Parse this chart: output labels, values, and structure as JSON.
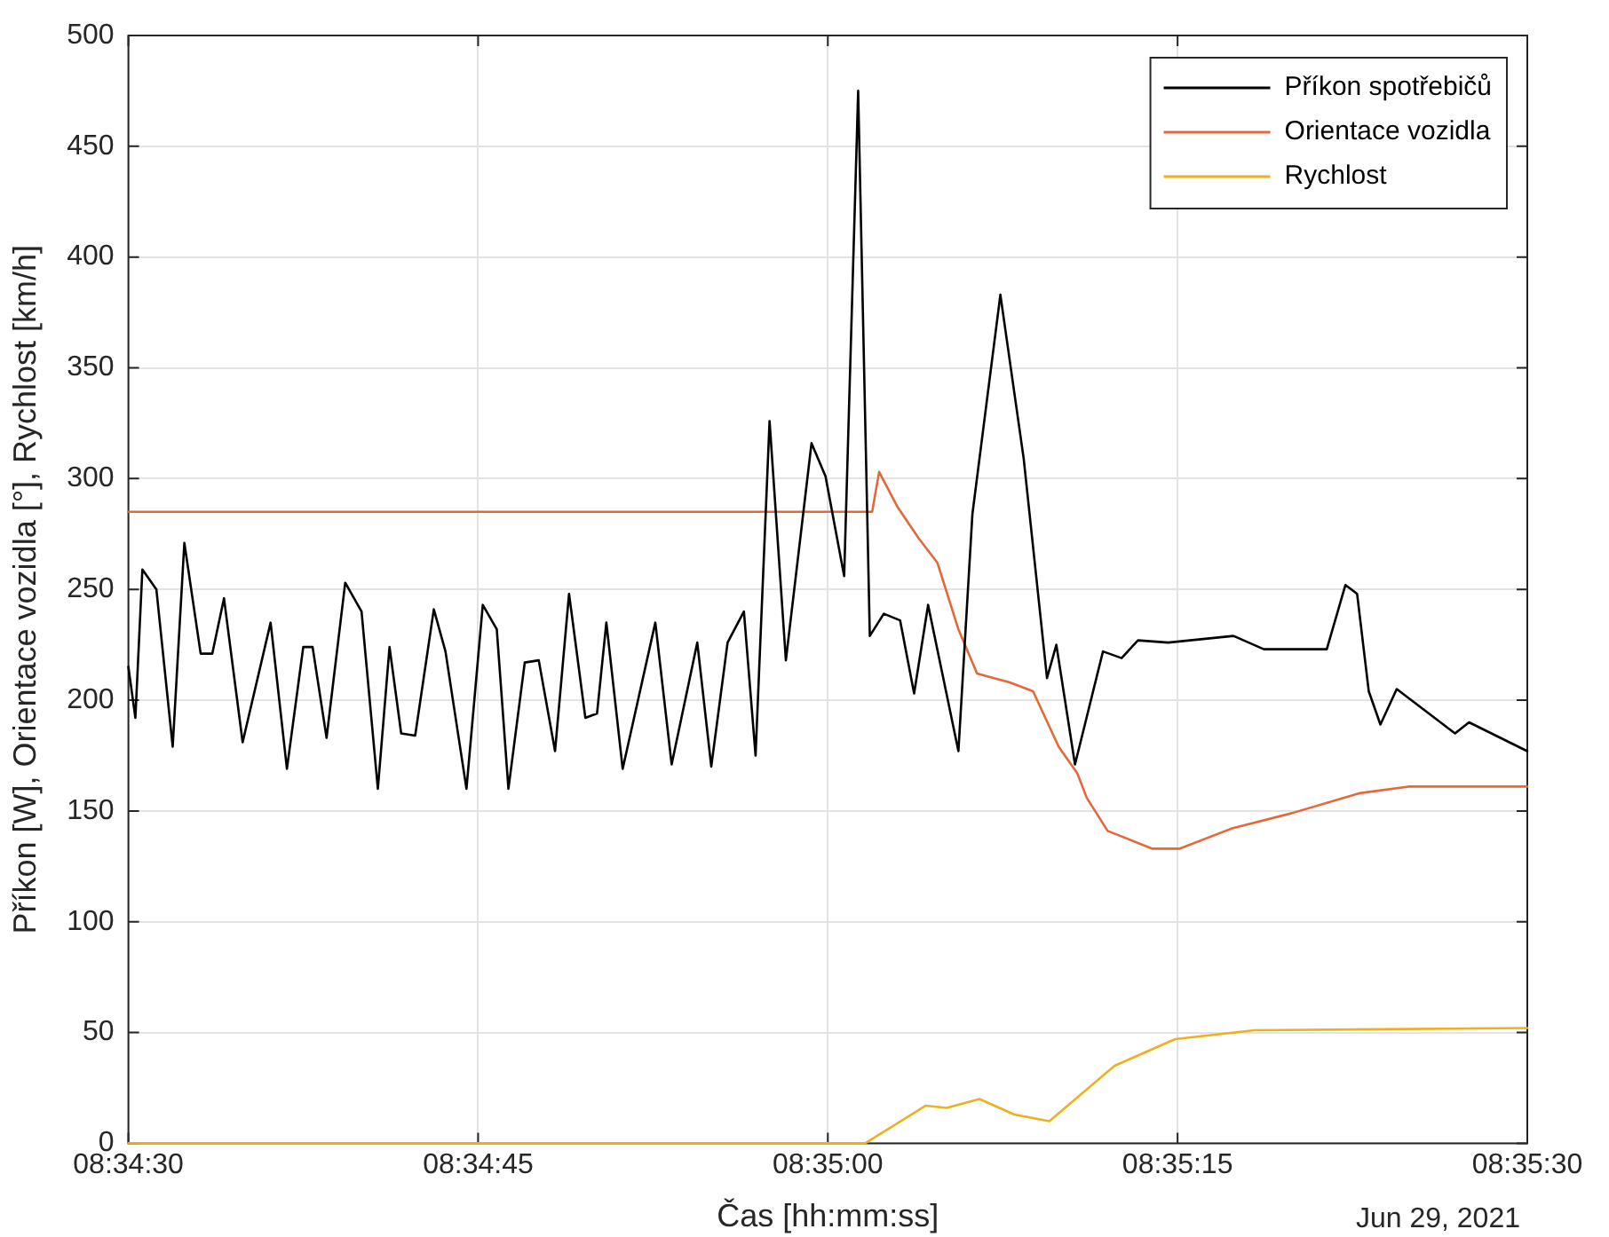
{
  "chart_data": {
    "type": "line",
    "xlabel": "Čas [hh:mm:ss]",
    "ylabel": "Příkon [W], Orientace vozidla [°], Rychlost [km/h]",
    "annotations": [
      "Jun 29, 2021"
    ],
    "xlim": [
      "2021-06-29T08:34:30",
      "2021-06-29T08:35:30"
    ],
    "xticks": [
      {
        "value": "2021-06-29T08:34:30",
        "label": "08:34:30"
      },
      {
        "value": "2021-06-29T08:34:45",
        "label": "08:34:45"
      },
      {
        "value": "2021-06-29T08:35:00",
        "label": "08:35:00"
      },
      {
        "value": "2021-06-29T08:35:15",
        "label": "08:35:15"
      },
      {
        "value": "2021-06-29T08:35:30",
        "label": "08:35:30"
      }
    ],
    "ylim": [
      0,
      500
    ],
    "yticks": [
      0,
      50,
      100,
      150,
      200,
      250,
      300,
      350,
      400,
      450,
      500
    ],
    "grid": true,
    "legend": "top right",
    "marker": "none",
    "line_style": "solid",
    "series": [
      {
        "name": "Příkon spotřebičů",
        "color": "#000000",
        "x": [
          "2021-06-29T08:34:30",
          "2021-06-29T08:34:30.3",
          "2021-06-29T08:34:30.6",
          "2021-06-29T08:34:31.2",
          "2021-06-29T08:34:31.9",
          "2021-06-29T08:34:32.4",
          "2021-06-29T08:34:33.1",
          "2021-06-29T08:34:33.6",
          "2021-06-29T08:34:34.1",
          "2021-06-29T08:34:34.9",
          "2021-06-29T08:34:36.1",
          "2021-06-29T08:34:36.8",
          "2021-06-29T08:34:37.5",
          "2021-06-29T08:34:37.9",
          "2021-06-29T08:34:38.5",
          "2021-06-29T08:34:39.3",
          "2021-06-29T08:34:40",
          "2021-06-29T08:34:40.7",
          "2021-06-29T08:34:41.2",
          "2021-06-29T08:34:41.7",
          "2021-06-29T08:34:42.3",
          "2021-06-29T08:34:43.1",
          "2021-06-29T08:34:43.6",
          "2021-06-29T08:34:44.5",
          "2021-06-29T08:34:45.2",
          "2021-06-29T08:34:45.8",
          "2021-06-29T08:34:46.3",
          "2021-06-29T08:34:47",
          "2021-06-29T08:34:47.6",
          "2021-06-29T08:34:48.3",
          "2021-06-29T08:34:48.9",
          "2021-06-29T08:34:49.6",
          "2021-06-29T08:34:50.1",
          "2021-06-29T08:34:50.5",
          "2021-06-29T08:34:51.2",
          "2021-06-29T08:34:52.6",
          "2021-06-29T08:34:53.3",
          "2021-06-29T08:34:54.4",
          "2021-06-29T08:34:55",
          "2021-06-29T08:34:55.7",
          "2021-06-29T08:34:56.4",
          "2021-06-29T08:34:56.9",
          "2021-06-29T08:34:57.5",
          "2021-06-29T08:34:58.2",
          "2021-06-29T08:34:59.3",
          "2021-06-29T08:34:59.9",
          "2021-06-29T08:35:00.7",
          "2021-06-29T08:35:01.3",
          "2021-06-29T08:35:01.8",
          "2021-06-29T08:35:02.4",
          "2021-06-29T08:35:03.1",
          "2021-06-29T08:35:03.7",
          "2021-06-29T08:35:04.3",
          "2021-06-29T08:35:05.6",
          "2021-06-29T08:35:06.2",
          "2021-06-29T08:35:07.4",
          "2021-06-29T08:35:08.4",
          "2021-06-29T08:35:09.4",
          "2021-06-29T08:35:09.8",
          "2021-06-29T08:35:10.6",
          "2021-06-29T08:35:11.8",
          "2021-06-29T08:35:12.6",
          "2021-06-29T08:35:13.3",
          "2021-06-29T08:35:14.6",
          "2021-06-29T08:35:17.4",
          "2021-06-29T08:35:18.7",
          "2021-06-29T08:35:21.4",
          "2021-06-29T08:35:22.2",
          "2021-06-29T08:35:22.7",
          "2021-06-29T08:35:23.2",
          "2021-06-29T08:35:23.7",
          "2021-06-29T08:35:24.4",
          "2021-06-29T08:35:26.9",
          "2021-06-29T08:35:27.5",
          "2021-06-29T08:35:30"
        ],
        "values": [
          215,
          192,
          259,
          250,
          179,
          271,
          221,
          221,
          246,
          181,
          235,
          169,
          224,
          224,
          183,
          253,
          240,
          160,
          224,
          185,
          184,
          241,
          222,
          160,
          243,
          232,
          160,
          217,
          218,
          177,
          248,
          192,
          194,
          235,
          169,
          235,
          171,
          226,
          170,
          226,
          240,
          175,
          326,
          218,
          316,
          301,
          256,
          475,
          229,
          239,
          236,
          203,
          243,
          177,
          284,
          383,
          309,
          210,
          225,
          171,
          222,
          219,
          227,
          226,
          229,
          223,
          223,
          252,
          248,
          204,
          189,
          205,
          185,
          190,
          177
        ]
      },
      {
        "name": "Orientace vozidla",
        "color": "#e2693b",
        "x": [
          "2021-06-29T08:34:30",
          "2021-06-29T08:35:01.9",
          "2021-06-29T08:35:02.2",
          "2021-06-29T08:35:03",
          "2021-06-29T08:35:03.9",
          "2021-06-29T08:35:04.7",
          "2021-06-29T08:35:05.6",
          "2021-06-29T08:35:06.4",
          "2021-06-29T08:35:07.8",
          "2021-06-29T08:35:08.8",
          "2021-06-29T08:35:09.9",
          "2021-06-29T08:35:10.7",
          "2021-06-29T08:35:11.1",
          "2021-06-29T08:35:12",
          "2021-06-29T08:35:13.9",
          "2021-06-29T08:35:15.1",
          "2021-06-29T08:35:17.3",
          "2021-06-29T08:35:19.9",
          "2021-06-29T08:35:22.8",
          "2021-06-29T08:35:24.9",
          "2021-06-29T08:35:30"
        ],
        "values": [
          285,
          285,
          303,
          287,
          273,
          262,
          232,
          212,
          208,
          204,
          179,
          167,
          156,
          141,
          133,
          133,
          142,
          149,
          158,
          161,
          161
        ]
      },
      {
        "name": "Rychlost",
        "color": "#edb120",
        "x": [
          "2021-06-29T08:34:30",
          "2021-06-29T08:35:01.6",
          "2021-06-29T08:35:04.2",
          "2021-06-29T08:35:05.1",
          "2021-06-29T08:35:06.5",
          "2021-06-29T08:35:08",
          "2021-06-29T08:35:09.5",
          "2021-06-29T08:35:12.3",
          "2021-06-29T08:35:14.9",
          "2021-06-29T08:35:18.3",
          "2021-06-29T08:35:30"
        ],
        "values": [
          0,
          0,
          17,
          16,
          20,
          13,
          10,
          35,
          47,
          51,
          52
        ]
      }
    ]
  }
}
